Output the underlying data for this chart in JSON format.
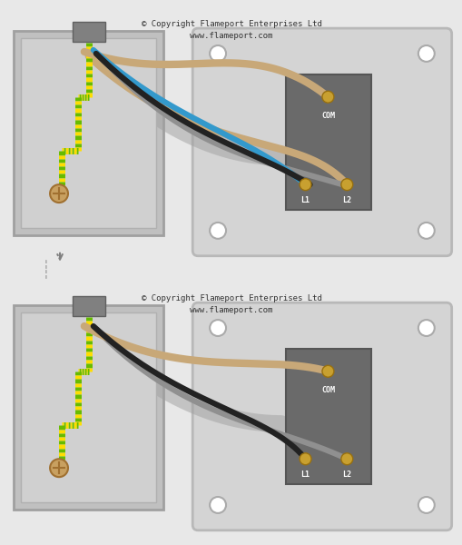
{
  "bg_color": "#e8e8e8",
  "panel_color": "#d0d0d0",
  "panel_edge_color": "#b0b0b0",
  "switch_body_color": "#707070",
  "box_color": "#d0d0d0",
  "box_inner_color": "#c0c0c0",
  "cable_sheath_color": "#909090",
  "wire_brown": "#c8a878",
  "wire_blue": "#3399cc",
  "wire_black": "#222222",
  "wire_gray": "#909090",
  "wire_green_yellow": "#88cc00",
  "wire_yellow": "#ffdd00",
  "copyright_text": "© Copyright Flameport Enterprises Ltd\nwww.flameport.com",
  "label_com": "COM",
  "label_l1": "L1",
  "label_l2": "L2",
  "terminal_color": "#c8a020",
  "screw_color": "#c8a020"
}
